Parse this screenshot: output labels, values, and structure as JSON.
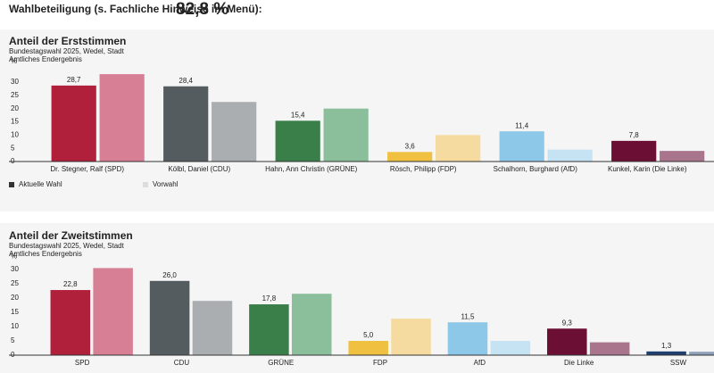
{
  "header": {
    "label": "Wahlbeteiligung (s. Fachliche Hinweise im Menü):",
    "value": "82,8 %"
  },
  "chart_data": [
    {
      "type": "bar",
      "title": "Anteil der Erststimmen",
      "subtitle": [
        "Bundestagswahl 2025, Wedel, Stadt",
        "Amtliches Endergebnis"
      ],
      "y_label": "%",
      "categories": [
        "Dr. Stegner, Ralf (SPD)",
        "Kölbl, Daniel (CDU)",
        "Hahn, Ann Christin (GRÜNE)",
        "Rösch, Philipp (FDP)",
        "Schalhorn, Burghard (AfD)",
        "Kunkel, Karin (Die Linke)"
      ],
      "series": [
        {
          "name": "Aktuelle Wahl",
          "color": "#333333",
          "colors": [
            "#b0203a",
            "#555c5f",
            "#3a7f4a",
            "#f0c040",
            "#8ec8e8",
            "#6b0f35"
          ],
          "values": [
            28.7,
            28.4,
            15.4,
            3.6,
            11.4,
            7.8
          ],
          "value_labels": [
            "28,7",
            "28,4",
            "15,4",
            "3,6",
            "11,4",
            "7,8"
          ]
        },
        {
          "name": "Vorwahl",
          "color": "#dddddd",
          "colors": [
            "#d77f94",
            "#aaaeb0",
            "#8bbf9c",
            "#f5dba0",
            "#c5e3f3",
            "#a8758c"
          ],
          "values": [
            33,
            22.5,
            20,
            10,
            4.5,
            4
          ]
        }
      ],
      "ylim": [
        0,
        33
      ],
      "yticks": [
        0,
        5,
        10,
        15,
        20,
        25,
        30
      ],
      "legend": "bottom-left"
    },
    {
      "type": "bar",
      "title": "Anteil der Zweitstimmen",
      "subtitle": [
        "Bundestagswahl 2025, Wedel, Stadt",
        "Amtliches Endergebnis"
      ],
      "y_label": "%",
      "categories": [
        "SPD",
        "CDU",
        "GRÜNE",
        "FDP",
        "AfD",
        "Die Linke",
        "SSW"
      ],
      "series": [
        {
          "colors": [
            "#b0203a",
            "#555c5f",
            "#3a7f4a",
            "#f0c040",
            "#8ec8e8",
            "#6b0f35",
            "#1f3f6e"
          ],
          "values": [
            22.8,
            26.0,
            17.8,
            5.0,
            11.5,
            9.3,
            1.3
          ],
          "value_labels": [
            "22,8",
            "26,0",
            "17,8",
            "5,0",
            "11,5",
            "9,3",
            "1,3"
          ]
        },
        {
          "colors": [
            "#d77f94",
            "#aaaeb0",
            "#8bbf9c",
            "#f5dba0",
            "#c5e3f3",
            "#a8758c",
            "#8fa0bb"
          ],
          "values": [
            30.5,
            19,
            21.5,
            12.8,
            5,
            4.5,
            1.2
          ]
        }
      ],
      "ylim": [
        0,
        32
      ],
      "yticks": [
        0,
        5,
        10,
        15,
        20,
        25,
        30
      ]
    }
  ]
}
